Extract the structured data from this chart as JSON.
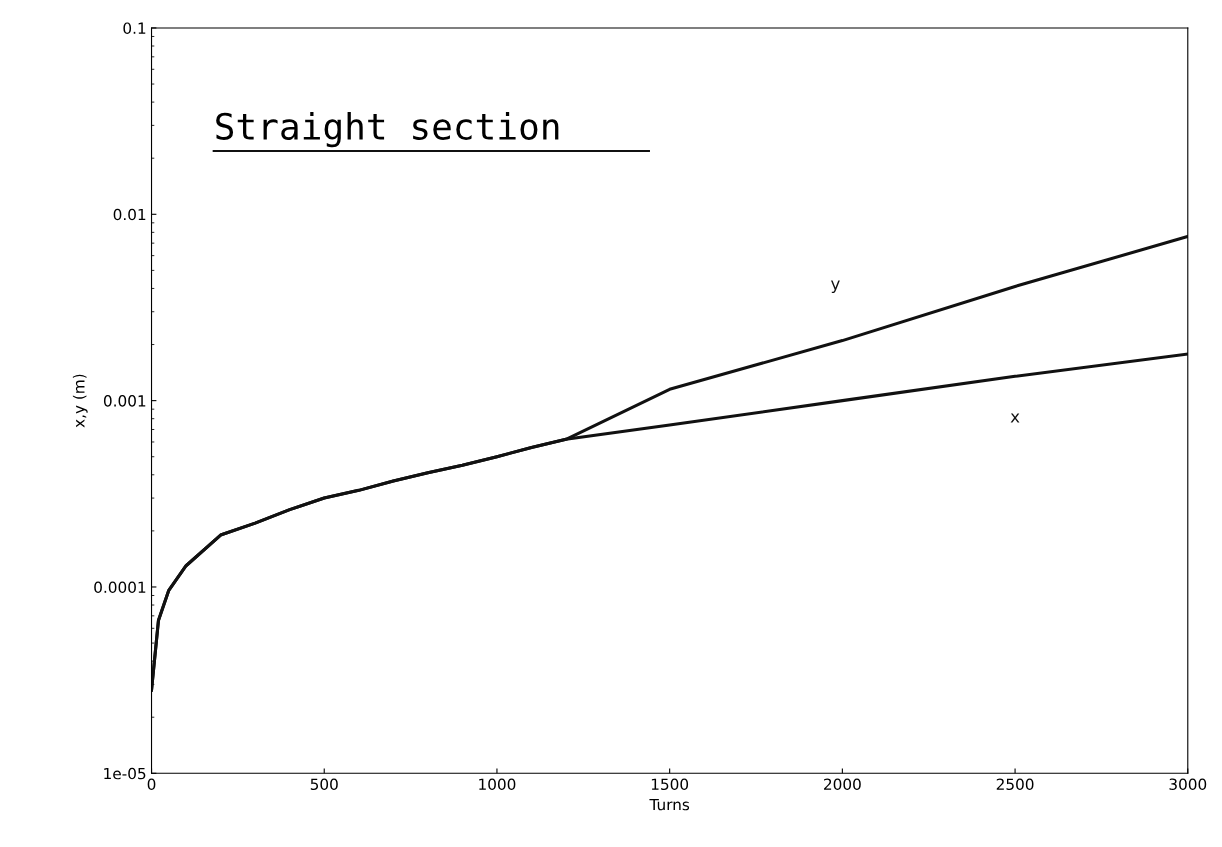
{
  "chart_data": {
    "type": "line",
    "xlabel": "Turns",
    "ylabel": "x,y (m)",
    "log": "y",
    "xlim": [
      0,
      3000
    ],
    "xticks": [
      0,
      500,
      1000,
      1500,
      2000,
      2500,
      3000
    ],
    "ylim": [
      1e-05,
      0.1
    ],
    "yticks": [
      {
        "value": 1e-05,
        "label": "1e-05"
      },
      {
        "value": 0.0001,
        "label": "0.0001"
      },
      {
        "value": 0.001,
        "label": "0.001"
      },
      {
        "value": 0.01,
        "label": "0.01"
      },
      {
        "value": 0.1,
        "label": "0.1"
      }
    ],
    "x": [
      0,
      20,
      50,
      100,
      200,
      300,
      400,
      500,
      600,
      700,
      800,
      900,
      1000,
      1100,
      1200,
      1500,
      2000,
      2500,
      3000
    ],
    "grid": false,
    "marker": "none",
    "line_style": "solid",
    "series": [
      {
        "name": "y",
        "color": "#111111",
        "values": [
          2.8e-05,
          6.6e-05,
          9.6e-05,
          0.00013,
          0.00019,
          0.00022,
          0.00026,
          0.0003,
          0.00033,
          0.00037,
          0.00041,
          0.00045,
          0.0005,
          0.00056,
          0.00062,
          0.00115,
          0.0021,
          0.0041,
          0.0076
        ]
      },
      {
        "name": "x",
        "color": "#111111",
        "values": [
          2.8e-05,
          6.6e-05,
          9.6e-05,
          0.00013,
          0.00019,
          0.00022,
          0.00026,
          0.0003,
          0.00033,
          0.00037,
          0.00041,
          0.00045,
          0.0005,
          0.00056,
          0.00062,
          0.00074,
          0.001,
          0.00135,
          0.00178
        ]
      }
    ],
    "annotations": [
      "Straight section"
    ]
  }
}
